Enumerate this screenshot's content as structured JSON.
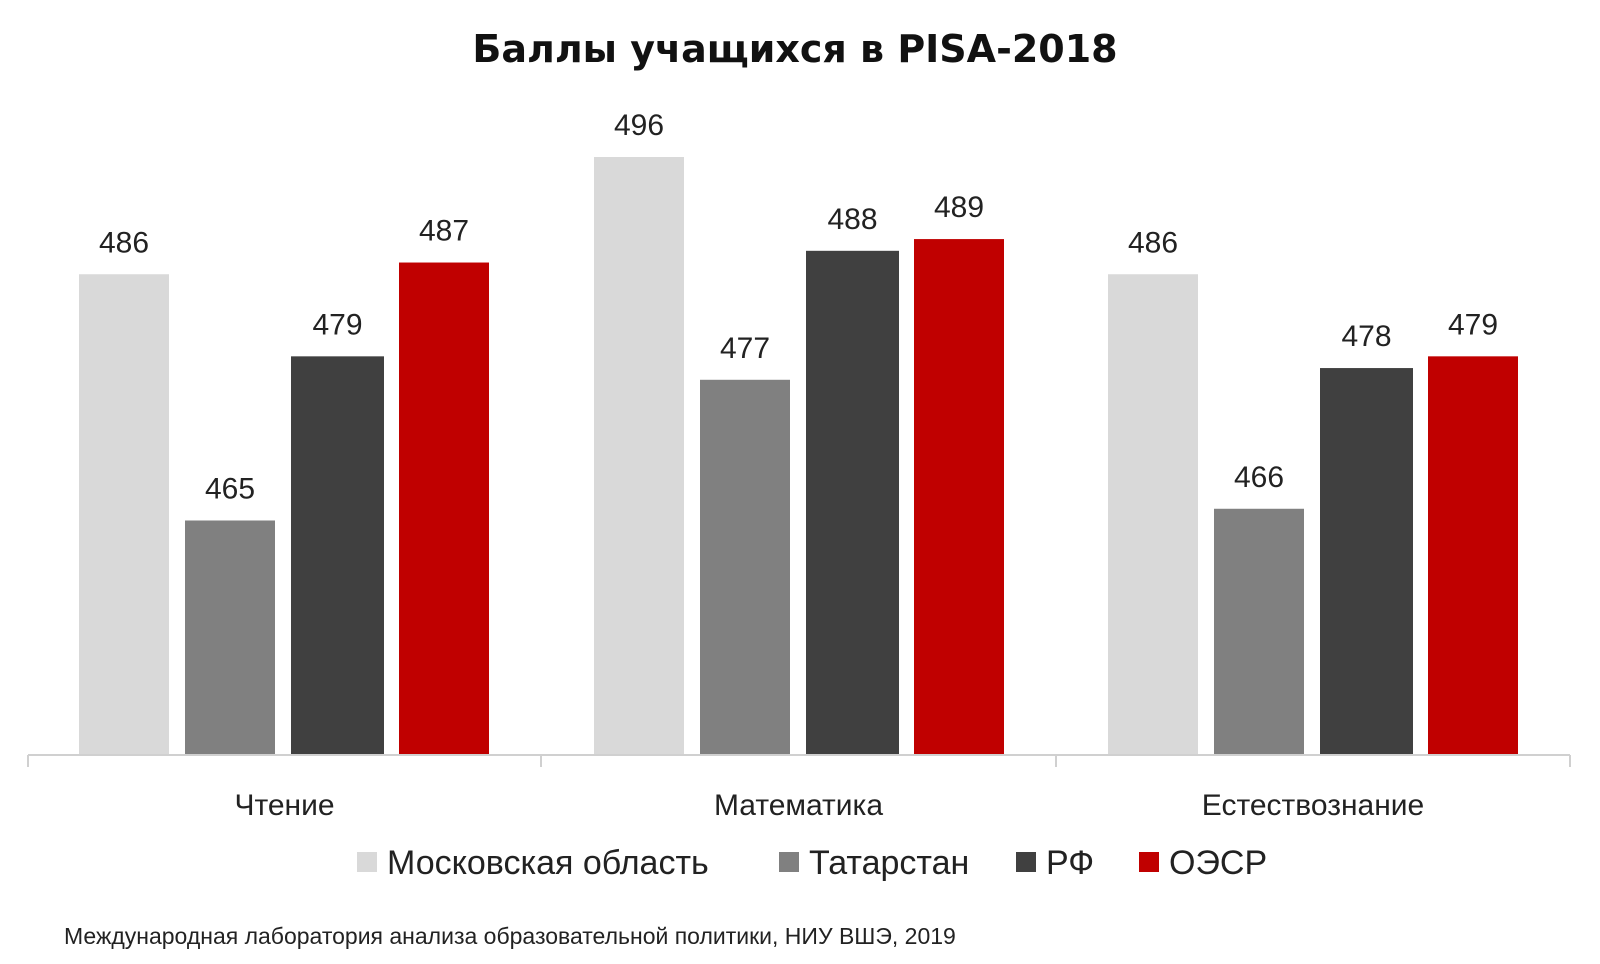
{
  "chart_data": {
    "type": "bar",
    "title": "Баллы учащихся в PISA-2018",
    "categories": [
      "Чтение",
      "Математика",
      "Естествознание"
    ],
    "series": [
      {
        "name": "Московская область",
        "color": "#d9d9d9",
        "values": [
          486,
          496,
          486
        ]
      },
      {
        "name": "Татарстан",
        "color": "#808080",
        "values": [
          465,
          477,
          466
        ]
      },
      {
        "name": "РФ",
        "color": "#404040",
        "values": [
          479,
          488,
          478
        ]
      },
      {
        "name": "ОЭСР",
        "color": "#c00000",
        "values": [
          487,
          489,
          479
        ]
      }
    ],
    "ylim": [
      445,
      496
    ],
    "legend_position": "bottom",
    "grid": false
  },
  "source_note": "Международная лаборатория анализа образовательной политики, НИУ ВШЭ, 2019"
}
